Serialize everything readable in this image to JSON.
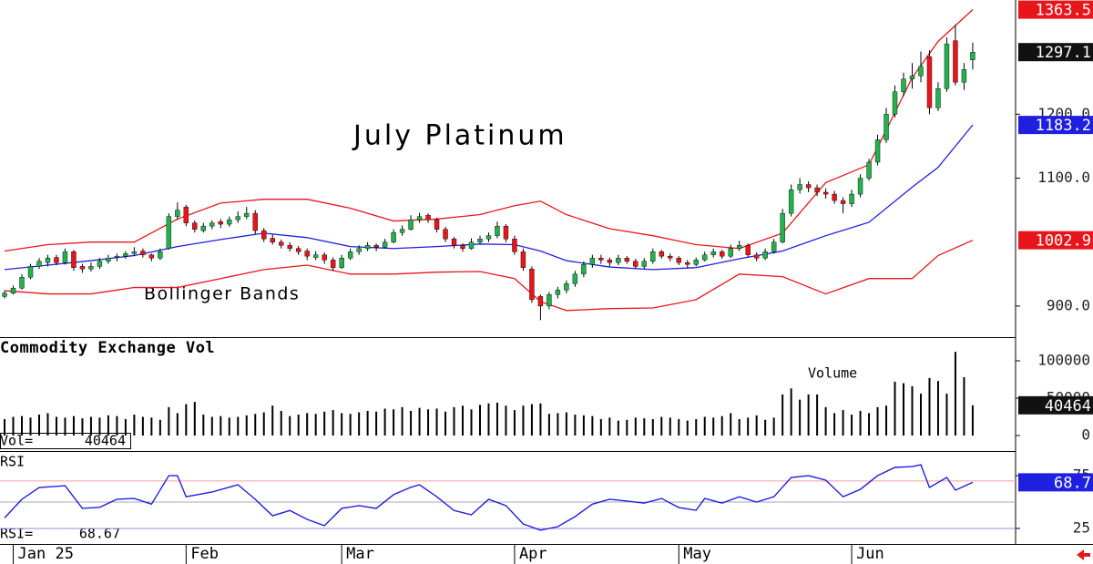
{
  "chart_data": [
    {
      "type": "candlestick",
      "title": "July Platinum",
      "annotation": "Bollinger Bands",
      "xlim": [
        -0.53,
        116.96
      ],
      "xticks": [
        {
          "value": 1,
          "label": "Jan 25"
        },
        {
          "value": 21,
          "label": "Feb"
        },
        {
          "value": 39,
          "label": "Mar"
        },
        {
          "value": 59,
          "label": "Apr"
        },
        {
          "value": 78,
          "label": "May"
        },
        {
          "value": 98,
          "label": "Jun"
        }
      ],
      "ylim": [
        851.4,
        1378.6
      ],
      "yticks": [
        {
          "value": 900,
          "label": "900.0"
        },
        {
          "value": 1100,
          "label": "1100.0"
        },
        {
          "value": 1200,
          "label": "1200.0"
        }
      ],
      "up_color": "#22b14c",
      "down_color": "#e8161b",
      "ohlc": [
        [
          915,
          924,
          912,
          920
        ],
        [
          920,
          932,
          918,
          928
        ],
        [
          928,
          950,
          926,
          945
        ],
        [
          945,
          966,
          942,
          962
        ],
        [
          962,
          975,
          958,
          970
        ],
        [
          968,
          980,
          962,
          975
        ],
        [
          976,
          980,
          964,
          968
        ],
        [
          968,
          990,
          965,
          985
        ],
        [
          985,
          988,
          955,
          960
        ],
        [
          962,
          966,
          952,
          958
        ],
        [
          958,
          968,
          954,
          962
        ],
        [
          962,
          975,
          958,
          970
        ],
        [
          970,
          980,
          966,
          975
        ],
        [
          976,
          982,
          970,
          978
        ],
        [
          978,
          986,
          974,
          982
        ],
        [
          982,
          992,
          978,
          985
        ],
        [
          986,
          990,
          976,
          980
        ],
        [
          980,
          982,
          970,
          975
        ],
        [
          975,
          990,
          972,
          985
        ],
        [
          990,
          1045,
          988,
          1040
        ],
        [
          1040,
          1062,
          1035,
          1050
        ],
        [
          1055,
          1058,
          1025,
          1030
        ],
        [
          1030,
          1034,
          1015,
          1020
        ],
        [
          1018,
          1030,
          1015,
          1025
        ],
        [
          1025,
          1034,
          1020,
          1030
        ],
        [
          1032,
          1036,
          1022,
          1028
        ],
        [
          1028,
          1040,
          1024,
          1035
        ],
        [
          1035,
          1048,
          1030,
          1040
        ],
        [
          1040,
          1055,
          1036,
          1045
        ],
        [
          1045,
          1050,
          1012,
          1018
        ],
        [
          1018,
          1022,
          1000,
          1005
        ],
        [
          1006,
          1012,
          996,
          1000
        ],
        [
          1000,
          1004,
          990,
          995
        ],
        [
          995,
          1000,
          985,
          990
        ],
        [
          990,
          994,
          980,
          985
        ],
        [
          986,
          990,
          972,
          978
        ],
        [
          976,
          986,
          972,
          980
        ],
        [
          980,
          984,
          966,
          972
        ],
        [
          972,
          976,
          955,
          960
        ],
        [
          960,
          980,
          958,
          975
        ],
        [
          975,
          990,
          972,
          985
        ],
        [
          985,
          995,
          980,
          990
        ],
        [
          990,
          1000,
          986,
          995
        ],
        [
          995,
          998,
          986,
          992
        ],
        [
          992,
          1005,
          990,
          1000
        ],
        [
          1000,
          1020,
          998,
          1015
        ],
        [
          1015,
          1026,
          1010,
          1020
        ],
        [
          1020,
          1042,
          1018,
          1035
        ],
        [
          1035,
          1046,
          1030,
          1040
        ],
        [
          1042,
          1045,
          1030,
          1035
        ],
        [
          1035,
          1038,
          1015,
          1020
        ],
        [
          1020,
          1024,
          1000,
          1005
        ],
        [
          1005,
          1008,
          990,
          995
        ],
        [
          995,
          998,
          985,
          990
        ],
        [
          990,
          1006,
          988,
          1000
        ],
        [
          1000,
          1010,
          996,
          1005
        ],
        [
          1005,
          1015,
          1000,
          1010
        ],
        [
          1010,
          1032,
          1006,
          1025
        ],
        [
          1025,
          1028,
          1000,
          1005
        ],
        [
          1005,
          1010,
          980,
          985
        ],
        [
          985,
          990,
          955,
          960
        ],
        [
          958,
          962,
          905,
          910
        ],
        [
          915,
          918,
          878,
          900
        ],
        [
          900,
          922,
          895,
          918
        ],
        [
          918,
          930,
          912,
          925
        ],
        [
          925,
          940,
          920,
          935
        ],
        [
          935,
          955,
          930,
          950
        ],
        [
          950,
          970,
          945,
          965
        ],
        [
          965,
          980,
          960,
          975
        ],
        [
          975,
          980,
          966,
          972
        ],
        [
          972,
          976,
          962,
          968
        ],
        [
          968,
          980,
          964,
          975
        ],
        [
          975,
          978,
          966,
          970
        ],
        [
          970,
          974,
          958,
          962
        ],
        [
          962,
          975,
          958,
          970
        ],
        [
          970,
          990,
          966,
          985
        ],
        [
          985,
          988,
          974,
          978
        ],
        [
          978,
          982,
          970,
          975
        ],
        [
          975,
          978,
          964,
          968
        ],
        [
          968,
          972,
          960,
          965
        ],
        [
          965,
          976,
          962,
          972
        ],
        [
          972,
          985,
          970,
          980
        ],
        [
          980,
          990,
          976,
          985
        ],
        [
          985,
          988,
          974,
          978
        ],
        [
          978,
          996,
          975,
          990
        ],
        [
          990,
          1002,
          986,
          995
        ],
        [
          995,
          998,
          976,
          980
        ],
        [
          980,
          984,
          970,
          975
        ],
        [
          975,
          990,
          972,
          985
        ],
        [
          985,
          1005,
          982,
          1000
        ],
        [
          1000,
          1052,
          998,
          1045
        ],
        [
          1045,
          1090,
          1040,
          1082
        ],
        [
          1082,
          1100,
          1076,
          1090
        ],
        [
          1090,
          1095,
          1078,
          1085
        ],
        [
          1085,
          1090,
          1072,
          1078
        ],
        [
          1078,
          1084,
          1068,
          1075
        ],
        [
          1075,
          1080,
          1060,
          1065
        ],
        [
          1065,
          1070,
          1045,
          1060
        ],
        [
          1060,
          1082,
          1055,
          1075
        ],
        [
          1075,
          1106,
          1070,
          1100
        ],
        [
          1100,
          1130,
          1096,
          1125
        ],
        [
          1125,
          1168,
          1120,
          1160
        ],
        [
          1160,
          1210,
          1155,
          1200
        ],
        [
          1200,
          1245,
          1195,
          1235
        ],
        [
          1235,
          1265,
          1228,
          1255
        ],
        [
          1255,
          1280,
          1240,
          1260
        ],
        [
          1260,
          1298,
          1250,
          1275
        ],
        [
          1290,
          1300,
          1200,
          1210
        ],
        [
          1210,
          1250,
          1205,
          1240
        ],
        [
          1240,
          1320,
          1235,
          1310
        ],
        [
          1315,
          1340,
          1245,
          1250
        ],
        [
          1250,
          1280,
          1238,
          1270
        ],
        [
          1285,
          1312,
          1270,
          1297.1
        ]
      ],
      "bands": {
        "x": [
          0,
          5,
          10,
          15,
          20,
          25,
          30,
          35,
          40,
          45,
          50,
          55,
          59,
          62,
          65,
          70,
          75,
          80,
          85,
          90,
          95,
          100,
          105,
          108,
          112
        ],
        "upper": [
          986,
          996,
          1000,
          1000,
          1036,
          1061,
          1067,
          1067,
          1053,
          1033,
          1036,
          1043,
          1057,
          1064,
          1043,
          1021,
          1010,
          996,
          990,
          1014,
          1093,
          1121,
          1257,
          1314,
          1363.5
        ],
        "middle": [
          957,
          964,
          971,
          979,
          993,
          1004,
          1014,
          1007,
          993,
          990,
          993,
          997,
          996,
          986,
          971,
          961,
          957,
          960,
          974,
          986,
          1010,
          1031,
          1086,
          1117,
          1183.2
        ],
        "lower": [
          924,
          919,
          919,
          929,
          929,
          943,
          957,
          964,
          950,
          950,
          953,
          954,
          943,
          907,
          893,
          896,
          897,
          910,
          950,
          946,
          919,
          943,
          943,
          979,
          1002.9
        ],
        "upper_color": "#e8161b",
        "middle_color": "#1f1fe0",
        "lower_color": "#e8161b"
      }
    },
    {
      "type": "bar",
      "title": "Commodity Exchange Vol",
      "annotation": "Volume",
      "readout_label": "Vol=",
      "ylim": [
        -20732,
        129268
      ],
      "yticks": [
        0,
        50000,
        100000
      ],
      "color": "#000000",
      "values": [
        22000,
        25000,
        26000,
        24000,
        28000,
        30000,
        25000,
        24000,
        26000,
        23000,
        25000,
        24000,
        27000,
        26000,
        22000,
        28000,
        25000,
        24000,
        21000,
        38000,
        30000,
        42000,
        45000,
        28000,
        25000,
        26000,
        24000,
        25000,
        27000,
        29000,
        31000,
        40000,
        33000,
        26000,
        28000,
        30000,
        29000,
        32000,
        34000,
        30000,
        29000,
        31000,
        33000,
        32000,
        36000,
        35000,
        38000,
        33000,
        37000,
        35000,
        36000,
        32000,
        38000,
        40000,
        35000,
        41000,
        43000,
        44000,
        40000,
        34000,
        40000,
        42000,
        43000,
        29000,
        30000,
        31000,
        28000,
        27000,
        26000,
        22000,
        24000,
        20000,
        21000,
        24000,
        23000,
        22000,
        25000,
        24000,
        22000,
        20000,
        22000,
        25000,
        24000,
        26000,
        30000,
        22000,
        24000,
        27000,
        21000,
        24000,
        55000,
        63000,
        48000,
        55000,
        55000,
        38000,
        30000,
        34000,
        28000,
        33000,
        30000,
        38000,
        40000,
        72000,
        70000,
        66000,
        56000,
        77000,
        73000,
        56000,
        112000,
        78000,
        40464
      ]
    },
    {
      "type": "line",
      "title": "RSI",
      "readout_label": "RSI=",
      "last_value_label": "68.7",
      "ylim": [
        10.3,
        96.6
      ],
      "yticks": [
        25,
        75
      ],
      "color": "#1f1fe0",
      "ref_lines": [
        {
          "value": 70,
          "color": "#f2a0a0"
        },
        {
          "value": 50,
          "color": "#a8a8b8"
        },
        {
          "value": 25,
          "color": "#8c8cf0"
        }
      ],
      "x": [
        0,
        2,
        4,
        7,
        9,
        11,
        13,
        15,
        17,
        19,
        20,
        21,
        24,
        27,
        29,
        31,
        33,
        35,
        37,
        39,
        41,
        43,
        45,
        47,
        48,
        50,
        52,
        54,
        56,
        58,
        60,
        62,
        64,
        66,
        68,
        70,
        72,
        74,
        76,
        78,
        80,
        81,
        83,
        85,
        87,
        89,
        91,
        93,
        95,
        97,
        99,
        101,
        103,
        105,
        106,
        107,
        109,
        110,
        112
      ],
      "values": [
        35,
        52.6,
        63.8,
        65.5,
        44,
        45,
        52.6,
        53.4,
        48,
        75,
        75,
        55,
        59.5,
        66.4,
        52.6,
        37,
        42,
        33.6,
        27.6,
        44,
        46.6,
        44,
        57,
        64,
        66.4,
        55,
        42,
        37.9,
        52.6,
        46.6,
        29.3,
        23.3,
        26.7,
        36.2,
        48,
        52.6,
        50.9,
        49,
        53.4,
        44.8,
        42.2,
        53.4,
        49,
        55,
        50,
        55,
        73.3,
        75,
        70.7,
        55,
        62,
        75,
        82.8,
        83.6,
        85.3,
        63.8,
        73.3,
        61.2,
        68.67
      ]
    }
  ]
}
